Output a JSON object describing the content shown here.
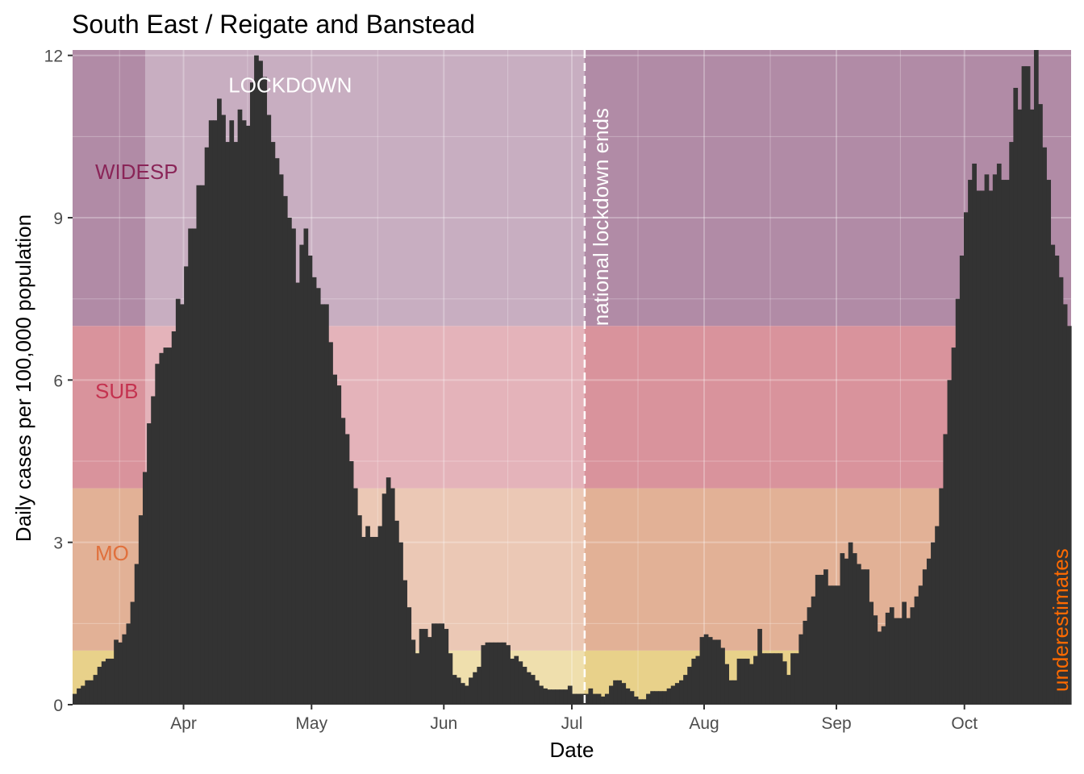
{
  "chart_data": {
    "type": "bar",
    "title": "South East / Reigate and Banstead",
    "xlabel": "Date",
    "ylabel": "Daily cases per 100,000 population",
    "ylim": [
      0,
      12.1
    ],
    "x_start": "2020-03-06",
    "x_end": "2020-10-26",
    "x_ticks": [
      {
        "label": "Apr",
        "date": "2020-04-01"
      },
      {
        "label": "May",
        "date": "2020-05-01"
      },
      {
        "label": "Jun",
        "date": "2020-06-01"
      },
      {
        "label": "Jul",
        "date": "2020-07-01"
      },
      {
        "label": "Aug",
        "date": "2020-08-01"
      },
      {
        "label": "Sep",
        "date": "2020-09-01"
      },
      {
        "label": "Oct",
        "date": "2020-10-01"
      }
    ],
    "y_ticks": [
      0,
      3,
      6,
      9,
      12
    ],
    "grid": true,
    "bands": [
      {
        "label": "",
        "from": 0,
        "to": 1,
        "color": "#e8d18a"
      },
      {
        "label": "MO",
        "from": 1,
        "to": 4,
        "color": "#e2b196",
        "label_color": "#e0703c"
      },
      {
        "label": "SUB",
        "from": 4,
        "to": 7,
        "color": "#d9939c",
        "label_color": "#c4324f"
      },
      {
        "label": "WIDESP",
        "from": 7,
        "to": 12.1,
        "color": "#b18ba6",
        "label_color": "#8a2558"
      }
    ],
    "lockdown": {
      "label": "LOCKDOWN",
      "start": "2020-03-23",
      "end": "2020-07-04"
    },
    "annotations": [
      {
        "text": "national lockdown ends",
        "date": "2020-07-04"
      },
      {
        "text": "underestimates",
        "color": "#ff6a00"
      }
    ],
    "bar_color": "#333333",
    "values": [
      0.2,
      0.3,
      0.35,
      0.45,
      0.45,
      0.55,
      0.7,
      0.8,
      0.85,
      0.85,
      1.2,
      1.15,
      1.3,
      1.5,
      1.9,
      2.6,
      3.5,
      4.3,
      5.2,
      5.7,
      6.3,
      6.5,
      6.6,
      6.6,
      6.9,
      7.5,
      7.4,
      8.1,
      8.8,
      8.8,
      9.6,
      9.6,
      10.3,
      10.8,
      10.8,
      11.2,
      10.9,
      10.4,
      10.8,
      10.4,
      11.0,
      10.8,
      10.7,
      11.5,
      12.0,
      11.9,
      11.6,
      10.9,
      10.4,
      10.1,
      9.8,
      9.4,
      9.0,
      8.8,
      7.8,
      8.5,
      8.8,
      8.3,
      7.9,
      7.7,
      7.4,
      7.4,
      6.7,
      6.1,
      5.9,
      5.3,
      5.0,
      4.5,
      4.0,
      3.5,
      3.1,
      3.3,
      3.1,
      3.1,
      3.3,
      3.9,
      4.2,
      4.0,
      3.4,
      3.0,
      2.3,
      1.8,
      1.2,
      0.95,
      1.4,
      1.4,
      1.25,
      1.5,
      1.5,
      1.5,
      1.4,
      0.95,
      0.55,
      0.5,
      0.4,
      0.35,
      0.5,
      0.6,
      0.7,
      1.1,
      1.15,
      1.15,
      1.15,
      1.15,
      1.15,
      1.1,
      0.85,
      0.9,
      0.8,
      0.7,
      0.6,
      0.55,
      0.45,
      0.35,
      0.3,
      0.28,
      0.28,
      0.28,
      0.28,
      0.28,
      0.35,
      0.2,
      0.2,
      0.2,
      0.2,
      0.3,
      0.2,
      0.2,
      0.15,
      0.2,
      0.35,
      0.45,
      0.45,
      0.4,
      0.3,
      0.25,
      0.15,
      0.1,
      0.1,
      0.2,
      0.25,
      0.25,
      0.25,
      0.25,
      0.3,
      0.35,
      0.4,
      0.45,
      0.55,
      0.7,
      0.85,
      0.9,
      1.25,
      1.3,
      1.25,
      1.2,
      1.2,
      1.05,
      0.75,
      0.45,
      0.45,
      0.85,
      0.85,
      0.85,
      0.75,
      0.9,
      1.4,
      0.95,
      0.95,
      0.95,
      0.95,
      0.95,
      0.8,
      0.55,
      0.95,
      0.95,
      1.3,
      1.55,
      1.8,
      2.0,
      2.4,
      2.4,
      2.5,
      2.2,
      2.2,
      2.2,
      2.8,
      2.7,
      3.0,
      2.8,
      2.6,
      2.5,
      2.5,
      1.9,
      1.65,
      1.35,
      1.45,
      1.7,
      1.8,
      1.6,
      1.6,
      1.9,
      1.6,
      1.8,
      2.0,
      2.2,
      2.5,
      2.7,
      3.0,
      3.3,
      4.0,
      5.0,
      6.0,
      6.6,
      7.5,
      8.3,
      9.1,
      9.7,
      10.0,
      9.5,
      9.5,
      9.8,
      9.5,
      9.8,
      10.0,
      9.7,
      9.7,
      10.4,
      11.4,
      11.0,
      11.8,
      11.8,
      11.0,
      12.1,
      11.1,
      10.3,
      9.7,
      8.5,
      8.3,
      7.9,
      7.4,
      7.0
    ]
  }
}
